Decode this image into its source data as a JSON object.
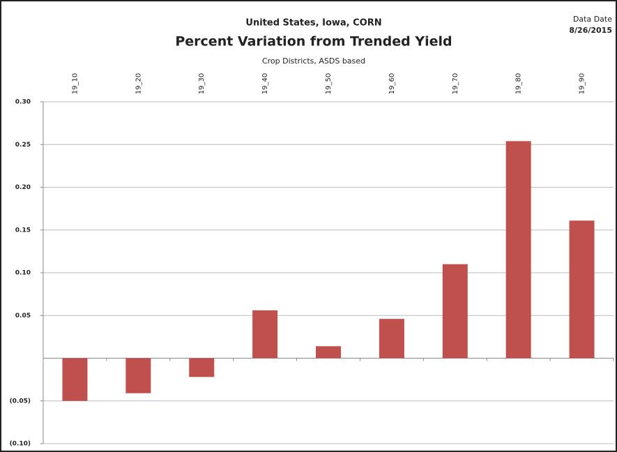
{
  "chart_data": {
    "type": "bar",
    "supertitle": "United States, Iowa, CORN",
    "title": "Percent Variation from Trended Yield",
    "subtitle": "Crop Districts, ASDS based",
    "date_label": "Data Date",
    "date": "8/26/2015",
    "categories": [
      "19_10",
      "19_20",
      "19_30",
      "19_40",
      "19_50",
      "19_60",
      "19_70",
      "19_80",
      "19_90"
    ],
    "values": [
      -0.05,
      -0.041,
      -0.022,
      0.056,
      0.014,
      0.046,
      0.11,
      0.254,
      0.161
    ],
    "color": "#c0504d",
    "ylim": [
      -0.1,
      0.3
    ],
    "yticks": [
      {
        "value": -0.1,
        "label": "(0.10)"
      },
      {
        "value": -0.05,
        "label": "(0.05)"
      },
      {
        "value": 0.05,
        "label": "0.05"
      },
      {
        "value": 0.1,
        "label": "0.10"
      },
      {
        "value": 0.15,
        "label": "0.15"
      },
      {
        "value": 0.2,
        "label": "0.20"
      },
      {
        "value": 0.25,
        "label": "0.25"
      },
      {
        "value": 0.3,
        "label": "0.30"
      }
    ],
    "grid": true
  }
}
